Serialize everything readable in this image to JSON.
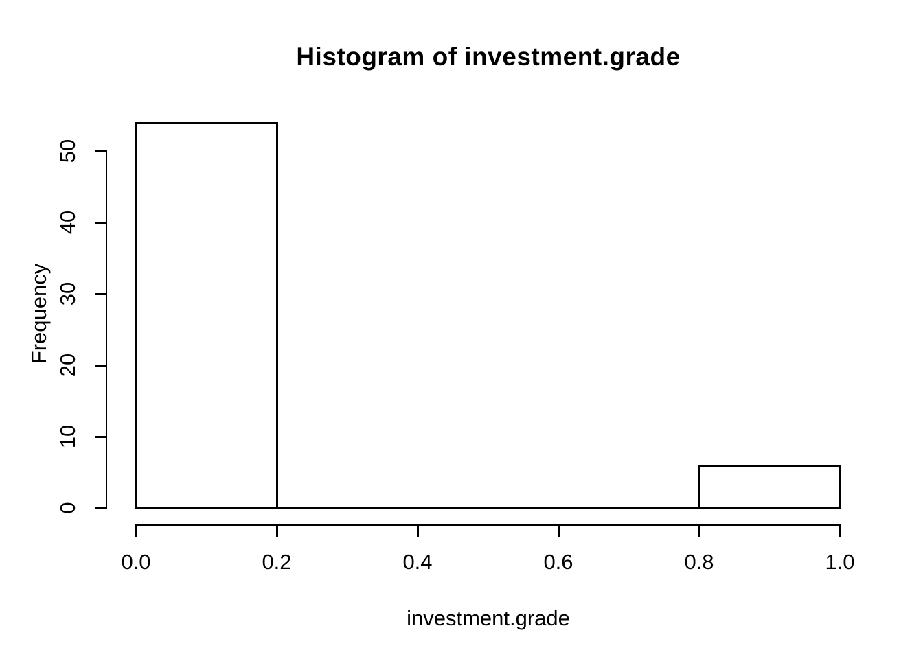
{
  "chart_data": {
    "type": "bar",
    "subtype": "histogram",
    "title": "Histogram of investment.grade",
    "xlabel": "investment.grade",
    "ylabel": "Frequency",
    "breaks": [
      0,
      0.2,
      0.4,
      0.6,
      0.8,
      1.0
    ],
    "counts": [
      54,
      0,
      0,
      0,
      6
    ],
    "bins": [
      {
        "x0": 0.0,
        "x1": 0.2,
        "count": 54
      },
      {
        "x0": 0.2,
        "x1": 0.4,
        "count": 0
      },
      {
        "x0": 0.4,
        "x1": 0.6,
        "count": 0
      },
      {
        "x0": 0.6,
        "x1": 0.8,
        "count": 0
      },
      {
        "x0": 0.8,
        "x1": 1.0,
        "count": 6
      }
    ],
    "x_ticks": [
      {
        "value": 0.0,
        "label": "0.0"
      },
      {
        "value": 0.2,
        "label": "0.2"
      },
      {
        "value": 0.4,
        "label": "0.4"
      },
      {
        "value": 0.6,
        "label": "0.6"
      },
      {
        "value": 0.8,
        "label": "0.8"
      },
      {
        "value": 1.0,
        "label": "1.0"
      }
    ],
    "y_ticks": [
      {
        "value": 0,
        "label": "0"
      },
      {
        "value": 10,
        "label": "10"
      },
      {
        "value": 20,
        "label": "20"
      },
      {
        "value": 30,
        "label": "30"
      },
      {
        "value": 40,
        "label": "40"
      },
      {
        "value": 50,
        "label": "50"
      }
    ],
    "xlim": [
      0,
      1
    ],
    "y_axis_range": [
      0,
      50
    ],
    "grid": false,
    "legend": null,
    "colors": {
      "background": "#ffffff",
      "line": "#000000",
      "bar_fill": "#ffffff",
      "bar_border": "#000000",
      "text": "#000000"
    }
  }
}
